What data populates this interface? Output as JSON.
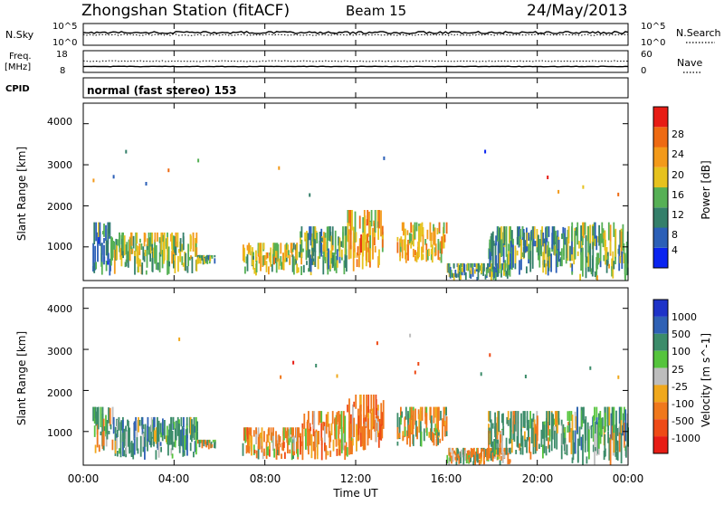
{
  "header": {
    "station": "Zhongshan Station (fitACF)",
    "beam": "Beam 15",
    "date": "24/May/2013"
  },
  "top_panels": {
    "nsky_label": "N.Sky",
    "nsky_ticks": [
      "10^5",
      "10^0"
    ],
    "nsearch_label": "N.Search",
    "nsearch_ticks": [
      "10^5",
      "10^0"
    ],
    "freq_label_1": "Freq.",
    "freq_label_2": "[MHz]",
    "freq_ticks": [
      "18",
      "8"
    ],
    "nave_label": "Nave",
    "nave_ticks": [
      "60",
      "0"
    ],
    "cpid_label": "CPID",
    "cpid_text": "normal (fast stereo) 153"
  },
  "power_colorbar": {
    "label": "Power [dB]",
    "ticks": [
      "28",
      "24",
      "20",
      "16",
      "12",
      "8",
      "4"
    ],
    "colors": [
      "#0a24f0",
      "#2b5fb7",
      "#347f6a",
      "#56b055",
      "#e6c21e",
      "#f39a1a",
      "#ee6a12",
      "#e71c15"
    ]
  },
  "velocity_colorbar": {
    "label": "Velocity [m s^-1]",
    "ticks": [
      "1000",
      "500",
      "100",
      "25",
      "-25",
      "-100",
      "-500",
      "-1000"
    ],
    "colors": [
      "#1e33c8",
      "#2f61b5",
      "#3c8c6a",
      "#55c43c",
      "#bdbdbd",
      "#f0a81c",
      "#f0781c",
      "#ee4a16",
      "#e71c15"
    ]
  },
  "axes": {
    "ylabel": "Slant Range [km]",
    "yticks": [
      "4000",
      "3000",
      "2000",
      "1000"
    ],
    "xticks": [
      "00:00",
      "04:00",
      "08:00",
      "12:00",
      "16:00",
      "20:00",
      "00:00"
    ],
    "xlabel": "Time UT"
  },
  "chart_data": [
    {
      "type": "heatmap",
      "title": "Zhongshan Station (fitACF) Beam 15 24/May/2013",
      "colorbar_label": "Power [dB]",
      "ylabel": "Slant Range [km]",
      "xlabel": "Time UT",
      "xlim_hours": [
        0,
        24
      ],
      "ylim_km": [
        180,
        4500
      ],
      "clim_db": [
        0,
        30
      ],
      "clusters": [
        {
          "t_start": 0.4,
          "t_end": 1.3,
          "r_min": 300,
          "r_max": 1600,
          "mean": 10
        },
        {
          "t_start": 1.3,
          "t_end": 5.0,
          "r_min": 300,
          "r_max": 1350,
          "mean": 15
        },
        {
          "t_start": 5.0,
          "t_end": 5.8,
          "r_min": 550,
          "r_max": 800,
          "mean": 12
        },
        {
          "t_start": 7.0,
          "t_end": 9.5,
          "r_min": 300,
          "r_max": 1100,
          "mean": 18
        },
        {
          "t_start": 9.5,
          "t_end": 11.6,
          "r_min": 300,
          "r_max": 1500,
          "mean": 14
        },
        {
          "t_start": 11.6,
          "t_end": 13.2,
          "r_min": 400,
          "r_max": 1900,
          "mean": 22
        },
        {
          "t_start": 13.8,
          "t_end": 16.0,
          "r_min": 600,
          "r_max": 1600,
          "mean": 20
        },
        {
          "t_start": 16.0,
          "t_end": 18.8,
          "r_min": 180,
          "r_max": 600,
          "mean": 12
        },
        {
          "t_start": 17.8,
          "t_end": 21.5,
          "r_min": 300,
          "r_max": 1500,
          "mean": 11
        },
        {
          "t_start": 21.5,
          "t_end": 24.0,
          "r_min": 180,
          "r_max": 1600,
          "mean": 14
        }
      ]
    },
    {
      "type": "heatmap",
      "colorbar_label": "Velocity [m s^-1]",
      "ylabel": "Slant Range [km]",
      "xlabel": "Time UT",
      "xlim_hours": [
        0,
        24
      ],
      "ylim_km": [
        180,
        4500
      ],
      "clim_ms": [
        -1000,
        1000
      ],
      "clusters": [
        {
          "t_start": 0.4,
          "t_end": 1.3,
          "r_min": 300,
          "r_max": 1600,
          "mean": 100
        },
        {
          "t_start": 1.3,
          "t_end": 5.0,
          "r_min": 300,
          "r_max": 1350,
          "mean": 300
        },
        {
          "t_start": 5.0,
          "t_end": 5.8,
          "r_min": 550,
          "r_max": 800,
          "mean": 50
        },
        {
          "t_start": 7.0,
          "t_end": 9.5,
          "r_min": 300,
          "r_max": 1100,
          "mean": -200
        },
        {
          "t_start": 9.5,
          "t_end": 11.6,
          "r_min": 300,
          "r_max": 1500,
          "mean": -250
        },
        {
          "t_start": 11.6,
          "t_end": 13.2,
          "r_min": 400,
          "r_max": 1900,
          "mean": -300
        },
        {
          "t_start": 13.8,
          "t_end": 16.0,
          "r_min": 600,
          "r_max": 1600,
          "mean": -100
        },
        {
          "t_start": 16.0,
          "t_end": 18.8,
          "r_min": 180,
          "r_max": 600,
          "mean": -150
        },
        {
          "t_start": 17.8,
          "t_end": 21.5,
          "r_min": 300,
          "r_max": 1500,
          "mean": 150
        },
        {
          "t_start": 21.5,
          "t_end": 24.0,
          "r_min": 180,
          "r_max": 1600,
          "mean": 200
        }
      ]
    }
  ]
}
